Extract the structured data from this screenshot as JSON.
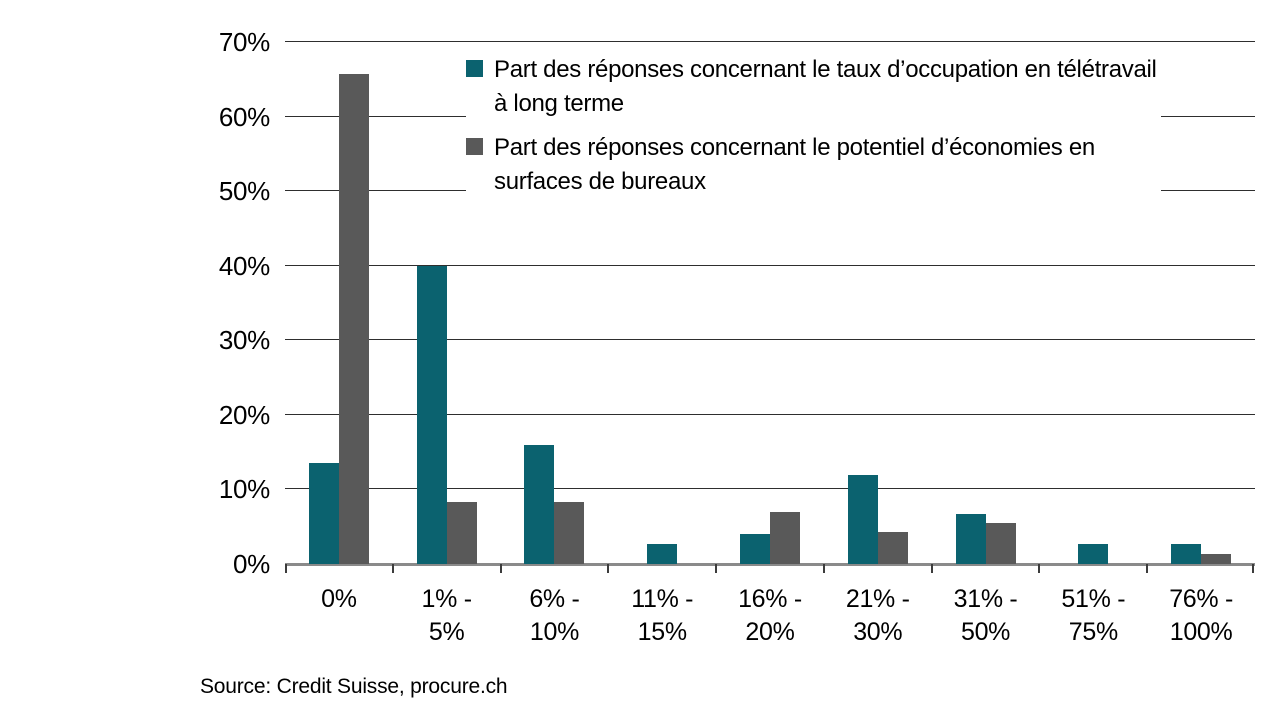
{
  "chart_data": {
    "type": "bar",
    "categories": [
      "0%",
      "1% - 5%",
      "6% - 10%",
      "11% - 15%",
      "16% - 20%",
      "21% - 30%",
      "31% - 50%",
      "51% - 75%",
      "76% - 100%"
    ],
    "series": [
      {
        "name": "Part des réponses concernant le taux d’occupation en télétravail à long terme",
        "color": "#0b626f",
        "values": [
          13.5,
          40,
          16,
          2.7,
          4,
          12,
          6.7,
          2.7,
          2.7
        ]
      },
      {
        "name": "Part des réponses concernant le potentiel d’économies en surfaces de bureaux",
        "color": "#595959",
        "values": [
          65.7,
          8.3,
          8.3,
          0,
          7,
          4.3,
          5.5,
          0,
          1.4
        ]
      }
    ],
    "title": "",
    "xlabel": "",
    "ylabel": "",
    "ylim": [
      0,
      70
    ],
    "ytick_step": 10,
    "ytick_suffix": "%",
    "grid": true,
    "legend_position": "top-right-inside",
    "legend": {
      "items": [
        {
          "series_index": 0,
          "lines": [
            "Part des réponses concernant le taux d’occupation en télétravail",
            "à long terme"
          ]
        },
        {
          "series_index": 1,
          "lines": [
            "Part des réponses concernant le potentiel d’économies en",
            "surfaces de bureaux"
          ]
        }
      ]
    }
  },
  "source_note": "Source: Credit Suisse, procure.ch"
}
